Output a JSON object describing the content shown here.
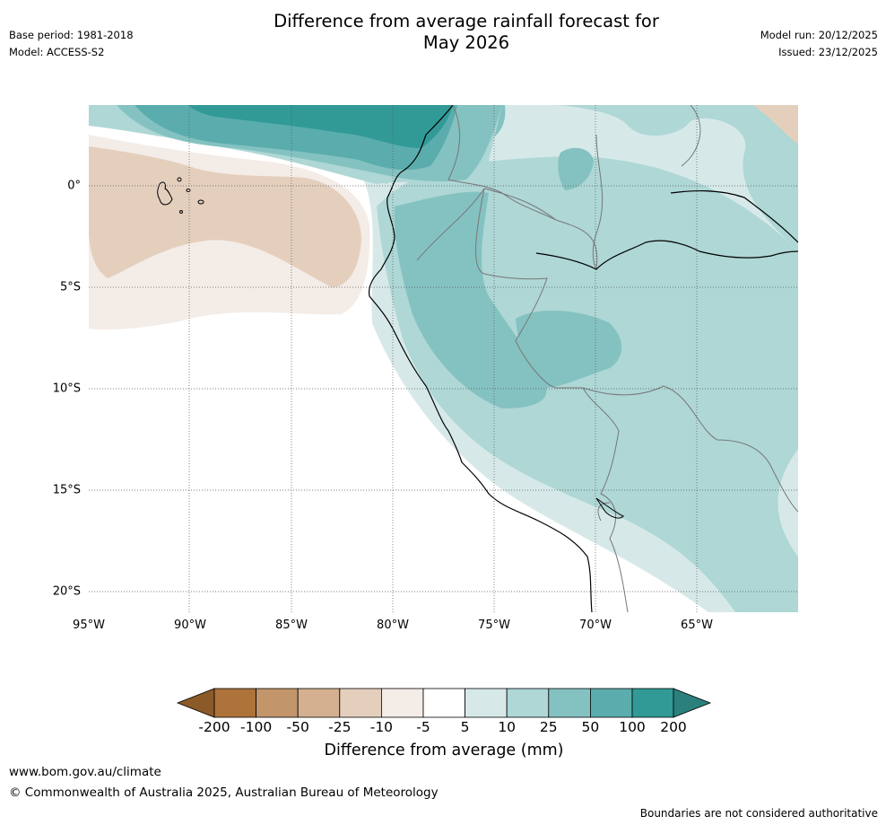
{
  "title": {
    "line1": "Difference from average rainfall forecast for",
    "line2": "May 2026"
  },
  "meta": {
    "base_period": "Base period: 1981-2018",
    "model": "Model: ACCESS-S2",
    "model_run": "Model run: 20/12/2025",
    "issued": "Issued: 23/12/2025"
  },
  "map": {
    "lon_ticks": [
      "95°W",
      "90°W",
      "85°W",
      "80°W",
      "75°W",
      "70°W",
      "65°W"
    ],
    "lat_ticks": [
      "0°",
      "5°S",
      "10°S",
      "15°S",
      "20°S"
    ]
  },
  "colorbar": {
    "ticks": [
      "-200",
      "-100",
      "-50",
      "-25",
      "-10",
      "-5",
      "5",
      "10",
      "25",
      "50",
      "100",
      "200"
    ],
    "label": "Difference from average (mm)",
    "colors": {
      "below_min": "#8c5a28",
      "b1": "#ad733a",
      "b2": "#c2956a",
      "b3": "#d4b090",
      "b4": "#e4cfbd",
      "b5": "#f4ece7",
      "b6": "#ffffff",
      "b7": "#d6e9e8",
      "b8": "#aed7d6",
      "b9": "#84c2c1",
      "b10": "#5badad",
      "b11": "#319a96",
      "above_max": "#2b807c"
    }
  },
  "footer": {
    "website": "www.bom.gov.au/climate",
    "copyright": "© Commonwealth of Australia 2025, Australian Bureau of Meteorology",
    "disclaimer": "Boundaries are not considered authoritative"
  }
}
